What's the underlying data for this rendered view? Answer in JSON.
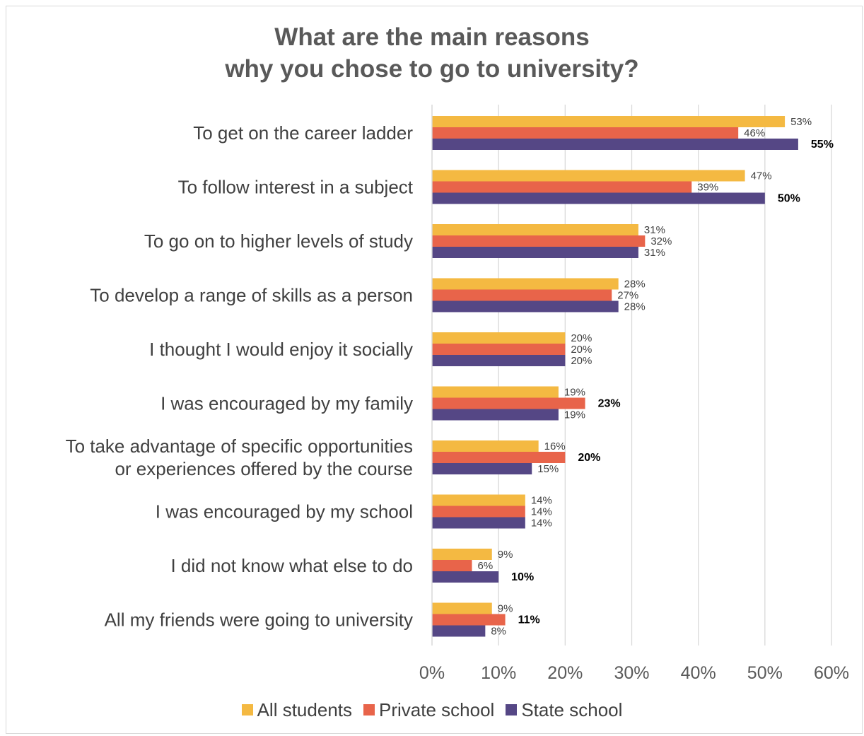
{
  "chart_data": {
    "type": "bar",
    "orientation": "horizontal",
    "title_lines": [
      "What are the main reasons",
      "why you chose to go to university?"
    ],
    "categories": [
      [
        "To get on the career ladder"
      ],
      [
        "To follow interest in a subject"
      ],
      [
        "To go on to higher levels of study"
      ],
      [
        "To develop a range of skills as a person"
      ],
      [
        "I thought I would enjoy it socially"
      ],
      [
        "I was encouraged by my family"
      ],
      [
        "To take advantage of specific opportunities",
        "or experiences offered by the course"
      ],
      [
        "I was encouraged by my school"
      ],
      [
        "I did not know what else to do"
      ],
      [
        "All my friends were going to university"
      ]
    ],
    "series": [
      {
        "name": "All students",
        "color": "#F4B942",
        "values": [
          53,
          47,
          31,
          28,
          20,
          19,
          16,
          14,
          9,
          9
        ],
        "labels": [
          "53%",
          "47%",
          "31%",
          "28%",
          "20%",
          "19%",
          "16%",
          "14%",
          "9%",
          "9%"
        ],
        "bold": [
          false,
          false,
          false,
          false,
          false,
          false,
          false,
          false,
          false,
          false
        ]
      },
      {
        "name": "Private school",
        "color": "#E8644A",
        "values": [
          46,
          39,
          32,
          27,
          20,
          23,
          20,
          14,
          6,
          11
        ],
        "labels": [
          "46%",
          "39%",
          "32%",
          "27%",
          "20%",
          "23%",
          "20%",
          "14%",
          "6%",
          "11%"
        ],
        "bold": [
          false,
          false,
          false,
          false,
          false,
          true,
          true,
          false,
          false,
          true
        ]
      },
      {
        "name": "State school",
        "color": "#554785",
        "values": [
          55,
          50,
          31,
          28,
          20,
          19,
          15,
          14,
          10,
          8
        ],
        "labels": [
          "55%",
          "50%",
          "31%",
          "28%",
          "20%",
          "19%",
          "15%",
          "14%",
          "10%",
          "8%"
        ],
        "bold": [
          true,
          true,
          false,
          false,
          false,
          false,
          false,
          false,
          true,
          false
        ]
      }
    ],
    "xlim": [
      0,
      60
    ],
    "xticks": [
      0,
      10,
      20,
      30,
      40,
      50,
      60
    ],
    "xtick_labels": [
      "0%",
      "10%",
      "20%",
      "30%",
      "40%",
      "50%",
      "60%"
    ],
    "grid": true,
    "legend_position": "bottom"
  }
}
